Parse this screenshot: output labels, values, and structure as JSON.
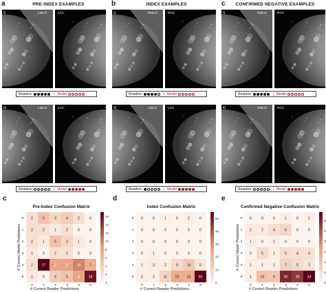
{
  "panels": {
    "a": {
      "label": "a",
      "title": "PRE-INDEX EXAMPLES",
      "rows": [
        {
          "roman": "i)",
          "views": [
            "LMLO",
            "LCC"
          ],
          "readers_label": "Readers:",
          "model_label": "Model:",
          "readers": [
            1,
            1,
            1,
            1,
            1
          ],
          "model": [
            0,
            0,
            0,
            0,
            0
          ]
        },
        {
          "roman": "ii)",
          "views": [
            "LMLO",
            "LCC"
          ],
          "readers_label": "Readers:",
          "model_label": "Model:",
          "readers": [
            0,
            0,
            0,
            0,
            0
          ],
          "model": [
            1,
            1,
            1,
            1,
            1
          ]
        }
      ]
    },
    "b": {
      "label": "b",
      "title": "INDEX EXAMPLES",
      "rows": [
        {
          "roman": "i)",
          "views": [
            "RMLO",
            "RCC"
          ],
          "readers_label": "Readers:",
          "model_label": "Model:",
          "readers": [
            1,
            1,
            1,
            1,
            0
          ],
          "model": [
            0,
            0,
            0,
            0,
            0
          ]
        },
        {
          "roman": "ii)",
          "views": [
            "LMLO",
            "LCC"
          ],
          "readers_label": "Readers:",
          "model_label": "Model:",
          "readers": [
            1,
            0,
            0,
            0,
            0
          ],
          "model": [
            1,
            1,
            1,
            1,
            1
          ]
        }
      ]
    },
    "c": {
      "label": "c",
      "title": "CONFIRMED NEGATIVE EXAMPLES",
      "rows": [
        {
          "roman": "i)",
          "views": [
            "RMLO",
            "RCC"
          ],
          "readers_label": "Readers:",
          "model_label": "Model:",
          "readers": [
            1,
            1,
            1,
            1,
            1
          ],
          "model": [
            0,
            0,
            0,
            0,
            0
          ]
        },
        {
          "roman": "ii)",
          "views": [
            "RMLO",
            "RCC"
          ],
          "readers_label": "Readers:",
          "model_label": "Model:",
          "readers": [
            0,
            0,
            0,
            0,
            0
          ],
          "model": [
            1,
            1,
            1,
            1,
            1
          ]
        }
      ]
    }
  },
  "chart_data": [
    {
      "type": "heatmap",
      "panel": "c",
      "title": "Pre-Index Confusion Matrix",
      "xlabel": "# Correct Reader Predictions",
      "ylabel": "# Correct Model Predictions",
      "x": [
        "0",
        "1",
        "2",
        "3",
        "4",
        "5"
      ],
      "y": [
        "0",
        "1",
        "2",
        "3",
        "4",
        "5"
      ],
      "values": [
        [
          2,
          5,
          3,
          4,
          2,
          0
        ],
        [
          2,
          2,
          1,
          2,
          0,
          0
        ],
        [
          2,
          1,
          5,
          3,
          1,
          0
        ],
        [
          1,
          0,
          2,
          2,
          0,
          0
        ],
        [
          2,
          17,
          8,
          8,
          10,
          7
        ],
        [
          1,
          0,
          4,
          5,
          8,
          16
        ]
      ],
      "colorbar_ticks": [
        0,
        2,
        4,
        6,
        8,
        10,
        12,
        14,
        16
      ],
      "vmax": 17
    },
    {
      "type": "heatmap",
      "panel": "d",
      "title": "Index Confusion Matrix",
      "xlabel": "# Correct Reader Predictions",
      "ylabel": "",
      "x": [
        "0",
        "1",
        "2",
        "3",
        "4",
        "5"
      ],
      "y": [
        "0",
        "1",
        "2",
        "3",
        "4",
        "5"
      ],
      "values": [
        [
          0,
          0,
          1,
          0,
          2,
          0
        ],
        [
          0,
          0,
          0,
          0,
          0,
          0
        ],
        [
          0,
          0,
          0,
          0,
          0,
          0
        ],
        [
          0,
          1,
          0,
          0,
          0,
          0
        ],
        [
          1,
          3,
          2,
          9,
          14,
          5
        ],
        [
          2,
          2,
          11,
          23,
          23,
          55
        ]
      ],
      "colorbar_ticks": [
        0,
        10,
        20,
        30,
        40,
        50
      ],
      "vmax": 55
    },
    {
      "type": "heatmap",
      "panel": "e",
      "title": "Confirmed Negative Confusion Matrix",
      "xlabel": "# Correct Reader Predictions",
      "ylabel": "# Correct Model Predictions",
      "x": [
        "0",
        "1",
        "2",
        "3",
        "4",
        "5"
      ],
      "y": [
        "0",
        "1",
        "2",
        "3",
        "4",
        "5"
      ],
      "values": [
        [
          0,
          0,
          0,
          1,
          0,
          1
        ],
        [
          2,
          2,
          4,
          6,
          0,
          0
        ],
        [
          1,
          0,
          1,
          0,
          0,
          0
        ],
        [
          0,
          5,
          1,
          5,
          4,
          4
        ],
        [
          1,
          1,
          1,
          7,
          5,
          3
        ],
        [
          1,
          10,
          9,
          30,
          28,
          34
        ]
      ],
      "colorbar_ticks": [
        0,
        5,
        10,
        15,
        20,
        25,
        30
      ],
      "vmax": 34
    }
  ],
  "colors": {
    "cmap_low": "#fbf3ee",
    "cmap_mid": "#e8a07e",
    "cmap_high": "#5b0018",
    "model": "#9b1b30"
  }
}
